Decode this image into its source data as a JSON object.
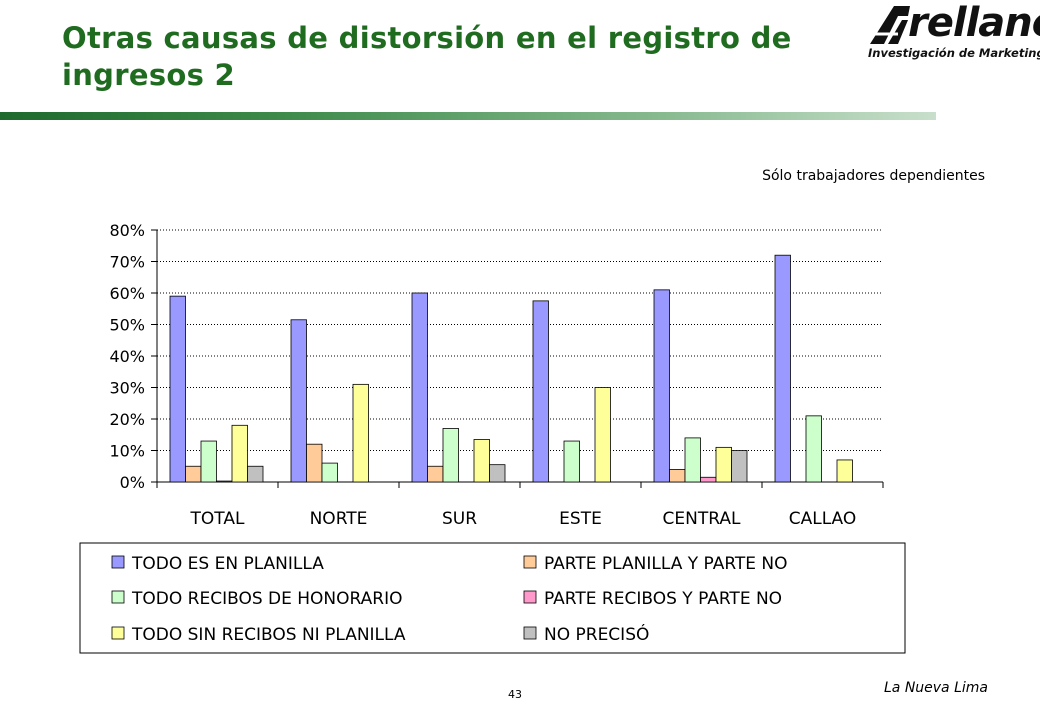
{
  "slide": {
    "title": "Otras causas de distorsión en el registro de ingresos 2",
    "subtitle": "Sólo trabajadores dependientes",
    "page_number": "43",
    "footer": "La Nueva Lima"
  },
  "logo": {
    "name": "rellano",
    "tagline": "Investigación de Marketing"
  },
  "colors": {
    "title": "#1f6b1f",
    "series": [
      "#9999ff",
      "#ffcc99",
      "#ccffcc",
      "#ff99cc",
      "#ffff99",
      "#c0c0c0"
    ]
  },
  "chart_data": {
    "type": "bar",
    "title": "",
    "xlabel": "",
    "ylabel": "",
    "ylim": [
      0,
      80
    ],
    "yticks": [
      "0%",
      "10%",
      "20%",
      "30%",
      "40%",
      "50%",
      "60%",
      "70%",
      "80%"
    ],
    "grid": true,
    "legend_position": "bottom",
    "categories": [
      "TOTAL",
      "NORTE",
      "SUR",
      "ESTE",
      "CENTRAL",
      "CALLAO"
    ],
    "series": [
      {
        "name": "TODO ES EN PLANILLA",
        "values": [
          59,
          51.5,
          60,
          57.5,
          61,
          72
        ]
      },
      {
        "name": "PARTE PLANILLA Y PARTE NO",
        "values": [
          5,
          12,
          5,
          0,
          4,
          0
        ]
      },
      {
        "name": "TODO RECIBOS DE HONORARIO",
        "values": [
          13,
          6,
          17,
          13,
          14,
          21
        ]
      },
      {
        "name": "PARTE RECIBOS Y PARTE NO",
        "values": [
          0.3,
          0,
          0,
          0,
          1.5,
          0
        ]
      },
      {
        "name": "TODO SIN RECIBOS NI PLANILLA",
        "values": [
          18,
          31,
          13.5,
          30,
          11,
          7
        ]
      },
      {
        "name": "NO PRECISÓ",
        "values": [
          5,
          0,
          5.5,
          0,
          10,
          0
        ]
      }
    ]
  }
}
